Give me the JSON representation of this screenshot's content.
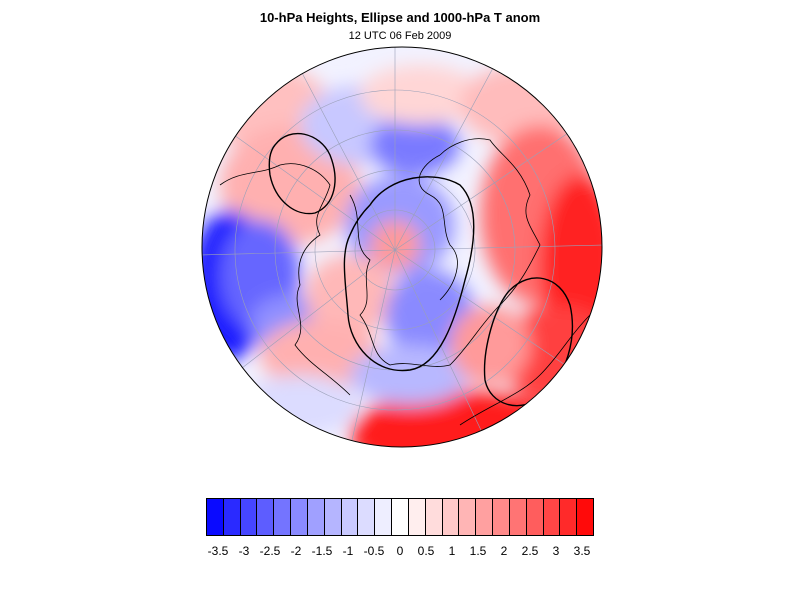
{
  "title": "10-hPa Heights, Ellipse and 1000-hPa T anom",
  "subtitle": "12 UTC 06 Feb 2009",
  "map": {
    "projection": "orthographic-north-polar",
    "field": "1000-hPa T anom",
    "overlays": [
      "10-hPa heights contours",
      "ellipse",
      "coastlines",
      "lat-lon grid"
    ]
  },
  "colorbar": {
    "colors": [
      "#0a0aff",
      "#2a2aff",
      "#4646ff",
      "#5d5dff",
      "#7474ff",
      "#8a8aff",
      "#a0a0ff",
      "#b5b5ff",
      "#c9c9ff",
      "#dcdcff",
      "#eeeeff",
      "#ffffff",
      "#ffeeee",
      "#ffdcdc",
      "#ffc9c9",
      "#ffb5b5",
      "#ffa0a0",
      "#ff8a8a",
      "#ff7474",
      "#ff5d5d",
      "#ff4646",
      "#ff2a2a",
      "#ff0a0a"
    ],
    "labels": [
      "-3.5",
      "-3",
      "-2.5",
      "-2",
      "-1.5",
      "-1",
      "-0.5",
      "0",
      "0.5",
      "1",
      "1.5",
      "2",
      "2.5",
      "3",
      "3.5"
    ]
  }
}
